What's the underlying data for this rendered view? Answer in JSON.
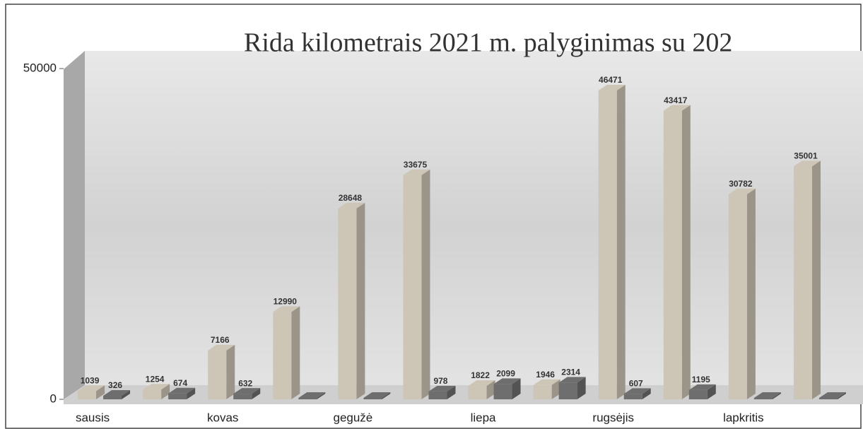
{
  "chart_data": {
    "type": "bar",
    "title": "Rida kilometrais 2021 m. palyginimas su 202",
    "categories": [
      "sausis",
      null,
      "kovas",
      null,
      "gegužė",
      null,
      "liepa",
      null,
      "rugsėjis",
      null,
      "lapkritis",
      null
    ],
    "series": [
      {
        "color": "#cdc5b6",
        "values": [
          1039,
          1254,
          7166,
          12990,
          28648,
          33675,
          1822,
          1946,
          46471,
          43417,
          30782,
          35001
        ],
        "value_labels": [
          "1039",
          "1254",
          "7166",
          "12990",
          "28648",
          "33675",
          "1822",
          "1946",
          "46471",
          "43417",
          "30782",
          "35001"
        ]
      },
      {
        "color": "#6e6e6e",
        "values": [
          326,
          674,
          632,
          0,
          0,
          978,
          2099,
          2314,
          607,
          1195,
          0,
          0
        ],
        "value_labels": [
          "326",
          "674",
          "632",
          null,
          null,
          "978",
          "2099",
          "2314",
          "607",
          "1195",
          null,
          null
        ]
      }
    ],
    "ylim": [
      0,
      50000
    ],
    "yticks": [
      0,
      50000
    ]
  }
}
